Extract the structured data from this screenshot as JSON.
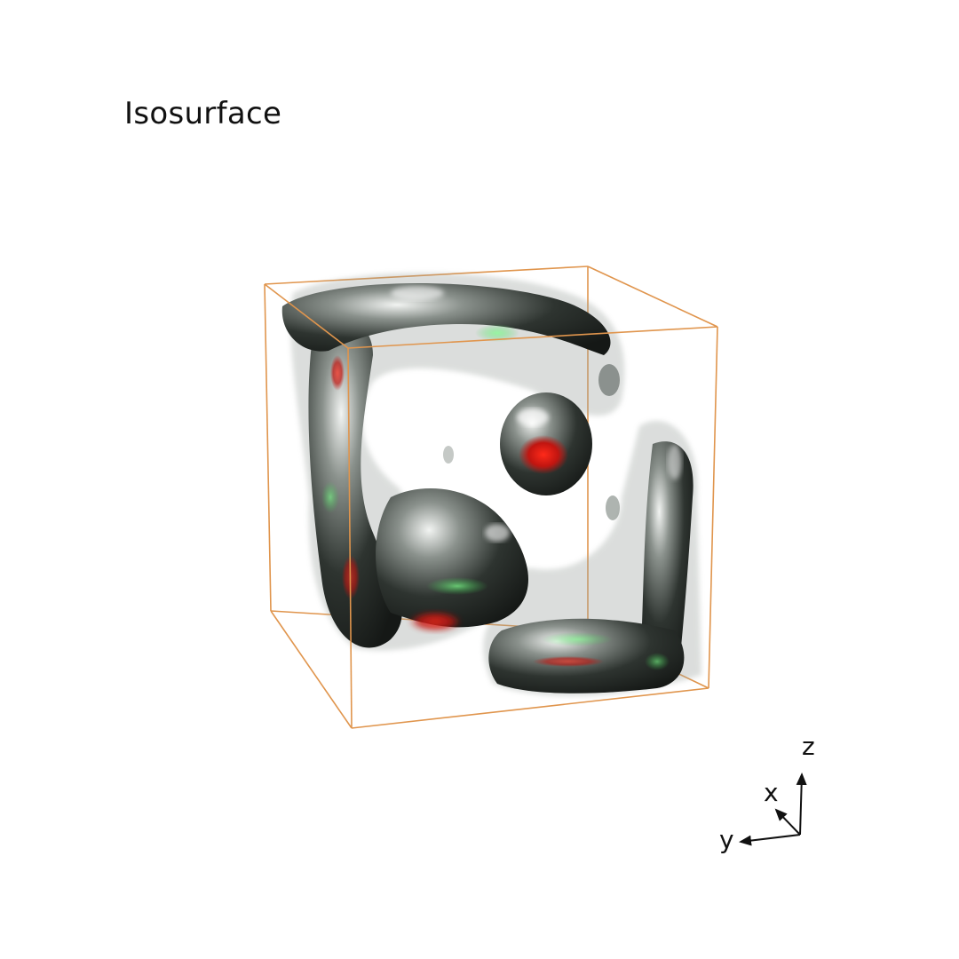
{
  "title": "Isosurface",
  "axes": {
    "x_label": "x",
    "y_label": "y",
    "z_label": "z"
  },
  "colors": {
    "box": "#e0954d",
    "surface": "#3d433f",
    "highlight_red": "#e01b12",
    "highlight_green": "#44e05a",
    "text": "#111111"
  }
}
